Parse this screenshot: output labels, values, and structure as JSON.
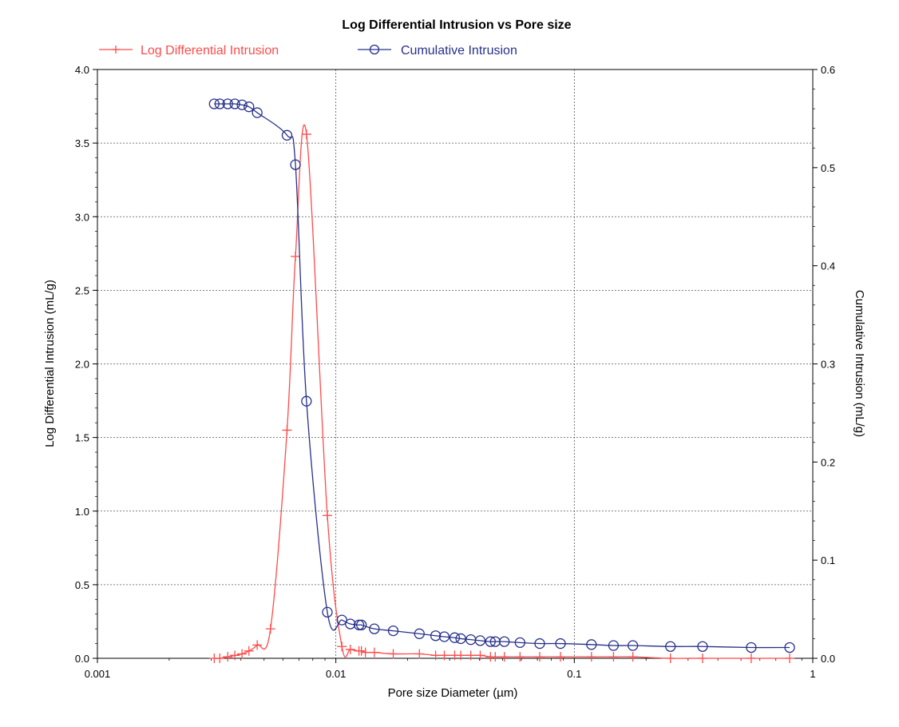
{
  "chart_data": {
    "type": "line",
    "title": "Log Differential Intrusion vs Pore size",
    "xlabel": "Pore size Diameter (µm)",
    "ylabel_left": "Log Differential Intrusion (mL/g)",
    "ylabel_right": "Cumulative Intrusion (mL/g)",
    "x_scale": "log",
    "xlim": [
      0.001,
      1
    ],
    "ylim_left": [
      0,
      4
    ],
    "ylim_right": [
      0,
      0.6
    ],
    "x_ticks": [
      "0.001",
      "0.01",
      "0.1",
      "1"
    ],
    "y_left_ticks": [
      "0.0",
      "0.5",
      "1.0",
      "1.5",
      "2.0",
      "2.5",
      "3.0",
      "3.5",
      "4.0"
    ],
    "y_right_ticks": [
      "0.0",
      "0.1",
      "0.2",
      "0.3",
      "0.4",
      "0.5",
      "0.6"
    ],
    "grid": true,
    "legend_position": "top",
    "series": [
      {
        "name": "Log Differential Intrusion",
        "axis": "left",
        "color": "#ff4a4a",
        "marker": "plus",
        "points": [
          [
            0.00309,
            0.0
          ],
          [
            0.00326,
            0.0
          ],
          [
            0.00352,
            0.01
          ],
          [
            0.00377,
            0.02
          ],
          [
            0.00404,
            0.03
          ],
          [
            0.00432,
            0.05
          ],
          [
            0.00468,
            0.09
          ],
          [
            0.00532,
            0.2
          ],
          [
            0.00624,
            1.55
          ],
          [
            0.00677,
            2.73
          ],
          [
            0.00753,
            3.56
          ],
          [
            0.00921,
            0.97
          ],
          [
            0.0106,
            0.08
          ],
          [
            0.0115,
            0.06
          ],
          [
            0.0125,
            0.05
          ],
          [
            0.0128,
            0.05
          ],
          [
            0.0133,
            0.04
          ],
          [
            0.0145,
            0.04
          ],
          [
            0.0174,
            0.03
          ],
          [
            0.0224,
            0.03
          ],
          [
            0.0262,
            0.02
          ],
          [
            0.0285,
            0.02
          ],
          [
            0.0315,
            0.02
          ],
          [
            0.0334,
            0.02
          ],
          [
            0.0368,
            0.02
          ],
          [
            0.0403,
            0.02
          ],
          [
            0.0445,
            0.01
          ],
          [
            0.0466,
            0.01
          ],
          [
            0.0509,
            0.01
          ],
          [
            0.0592,
            0.01
          ],
          [
            0.0716,
            0.01
          ],
          [
            0.0875,
            0.01
          ],
          [
            0.118,
            0.01
          ],
          [
            0.146,
            0.01
          ],
          [
            0.176,
            0.01
          ],
          [
            0.253,
            0.0
          ],
          [
            0.345,
            0.0
          ],
          [
            0.552,
            0.0
          ],
          [
            0.8,
            0.0
          ]
        ]
      },
      {
        "name": "Cumulative Intrusion",
        "axis": "right",
        "color": "#27308a",
        "marker": "circle",
        "points": [
          [
            0.00309,
            0.565
          ],
          [
            0.00326,
            0.565
          ],
          [
            0.00352,
            0.565
          ],
          [
            0.00377,
            0.565
          ],
          [
            0.00404,
            0.564
          ],
          [
            0.00432,
            0.562
          ],
          [
            0.00468,
            0.556
          ],
          [
            0.00624,
            0.533
          ],
          [
            0.00677,
            0.503
          ],
          [
            0.00753,
            0.262
          ],
          [
            0.00921,
            0.047
          ],
          [
            0.0106,
            0.039
          ],
          [
            0.0115,
            0.035
          ],
          [
            0.0125,
            0.034
          ],
          [
            0.0128,
            0.034
          ],
          [
            0.0145,
            0.03
          ],
          [
            0.0174,
            0.028
          ],
          [
            0.0224,
            0.025
          ],
          [
            0.0262,
            0.023
          ],
          [
            0.0285,
            0.022
          ],
          [
            0.0315,
            0.021
          ],
          [
            0.0334,
            0.02
          ],
          [
            0.0368,
            0.019
          ],
          [
            0.0403,
            0.018
          ],
          [
            0.0445,
            0.017
          ],
          [
            0.0466,
            0.017
          ],
          [
            0.0509,
            0.017
          ],
          [
            0.0592,
            0.016
          ],
          [
            0.0716,
            0.015
          ],
          [
            0.0875,
            0.015
          ],
          [
            0.118,
            0.014
          ],
          [
            0.146,
            0.013
          ],
          [
            0.176,
            0.013
          ],
          [
            0.253,
            0.012
          ],
          [
            0.345,
            0.012
          ],
          [
            0.552,
            0.011
          ],
          [
            0.8,
            0.011
          ]
        ]
      }
    ]
  }
}
